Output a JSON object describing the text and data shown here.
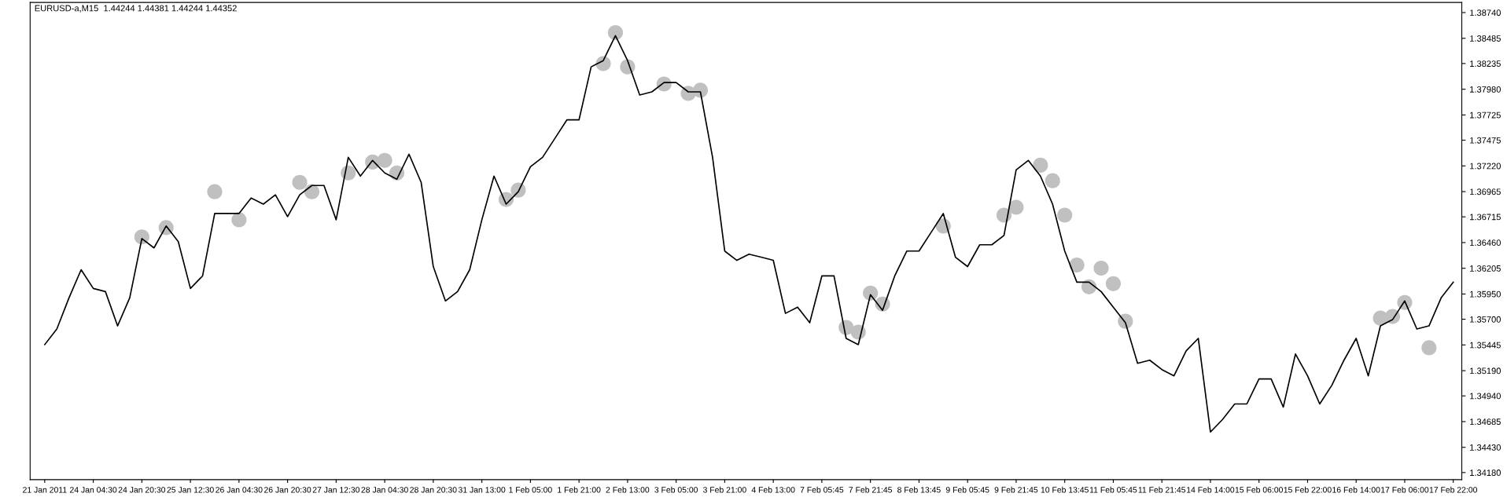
{
  "chart_data": {
    "type": "line",
    "title": "EURUSD-a,M15  1.44244 1.44381 1.44244 1.44352",
    "categories": [
      "21 Jan 2011",
      null,
      null,
      null,
      "24 Jan 04:30",
      null,
      null,
      null,
      "24 Jan 20:30",
      null,
      null,
      null,
      "25 Jan 12:30",
      null,
      null,
      null,
      "26 Jan 04:30",
      null,
      null,
      null,
      "26 Jan 20:30",
      null,
      null,
      null,
      "27 Jan 12:30",
      null,
      null,
      null,
      "28 Jan 04:30",
      null,
      null,
      null,
      "28 Jan 20:30",
      null,
      null,
      null,
      "31 Jan 13:00",
      null,
      null,
      null,
      "1 Feb 05:00",
      null,
      null,
      null,
      "1 Feb 21:00",
      null,
      null,
      null,
      "2 Feb 13:00",
      null,
      null,
      null,
      "3 Feb 05:00",
      null,
      null,
      null,
      "3 Feb 21:00",
      null,
      null,
      null,
      "4 Feb 13:00",
      null,
      null,
      null,
      "7 Feb 05:45",
      null,
      null,
      null,
      "7 Feb 21:45",
      null,
      null,
      null,
      "8 Feb 13:45",
      null,
      null,
      null,
      "9 Feb 05:45",
      null,
      null,
      null,
      "9 Feb 21:45",
      null,
      null,
      null,
      "10 Feb 13:45",
      null,
      null,
      null,
      "11 Feb 05:45",
      null,
      null,
      null,
      "11 Feb 21:45",
      null,
      null,
      null,
      "14 Feb 14:00",
      null,
      null,
      null,
      "15 Feb 06:00",
      null,
      null,
      null,
      "15 Feb 22:00",
      null,
      null,
      null,
      "16 Feb 14:00",
      null,
      null,
      null,
      "17 Feb 06:00",
      null,
      null,
      null,
      "17 Feb 22:00"
    ],
    "series": [
      {
        "type": "scatter",
        "color": "#c0c0c0",
        "marker": "circle",
        "values": [
          null,
          null,
          null,
          null,
          null,
          null,
          null,
          null,
          1.36516,
          null,
          1.36608,
          null,
          null,
          null,
          1.36964,
          null,
          1.36686,
          null,
          null,
          null,
          null,
          1.37057,
          1.36964,
          null,
          null,
          1.3715,
          null,
          1.37258,
          1.37274,
          1.3715,
          null,
          null,
          null,
          null,
          null,
          null,
          null,
          null,
          1.36887,
          1.3698,
          null,
          null,
          null,
          null,
          null,
          null,
          1.38234,
          1.38542,
          1.38202,
          null,
          null,
          1.38032,
          null,
          1.37939,
          1.3797,
          null,
          null,
          null,
          null,
          null,
          null,
          null,
          null,
          null,
          null,
          null,
          1.35618,
          1.35572,
          1.35959,
          1.3585,
          null,
          null,
          null,
          null,
          1.36624,
          null,
          null,
          null,
          null,
          1.36732,
          1.3681,
          null,
          1.37227,
          1.37073,
          1.36732,
          1.36237,
          1.36021,
          1.36206,
          1.36052,
          1.3568,
          null,
          null,
          null,
          null,
          null,
          null,
          null,
          null,
          null,
          null,
          null,
          null,
          null,
          null,
          null,
          null,
          null,
          null,
          null,
          null,
          1.35711,
          1.35727,
          1.35866,
          null,
          1.35417,
          null,
          null
        ]
      },
      {
        "color": "#000000",
        "values": [
          1.35448,
          1.35603,
          1.35912,
          1.36191,
          1.36005,
          1.35974,
          1.35634,
          1.35912,
          1.365,
          1.36407,
          1.36624,
          1.36469,
          1.36005,
          1.36129,
          1.36748,
          1.36748,
          1.36748,
          1.36902,
          1.36841,
          1.36933,
          1.36717,
          1.36933,
          1.37026,
          1.37026,
          1.36686,
          1.37305,
          1.37119,
          1.37274,
          1.3715,
          1.37088,
          1.37336,
          1.37057,
          1.36222,
          1.35881,
          1.35974,
          1.36191,
          1.36686,
          1.37119,
          1.36841,
          1.36964,
          1.37212,
          1.37305,
          1.3749,
          1.37676,
          1.37676,
          1.38202,
          1.38264,
          1.38511,
          1.38264,
          1.37923,
          1.37954,
          1.38047,
          1.38047,
          1.37954,
          1.37954,
          1.37305,
          1.36376,
          1.36284,
          1.36345,
          1.36315,
          1.36284,
          1.35758,
          1.3582,
          1.35665,
          1.36129,
          1.36129,
          1.3551,
          1.35448,
          1.35943,
          1.35789,
          1.36129,
          1.36376,
          1.36376,
          1.36562,
          1.36748,
          1.36315,
          1.36222,
          1.36438,
          1.36438,
          1.36531,
          1.37181,
          1.37274,
          1.37119,
          1.36841,
          1.36376,
          1.36067,
          1.36067,
          1.35974,
          1.3582,
          1.35665,
          1.35263,
          1.35294,
          1.35201,
          1.35139,
          1.35386,
          1.3551,
          1.34582,
          1.34706,
          1.3486,
          1.3486,
          1.35108,
          1.35108,
          1.34829,
          1.35355,
          1.35139,
          1.3486,
          1.35046,
          1.35294,
          1.3551,
          1.35139,
          1.35634,
          1.35696,
          1.35881,
          1.35603,
          1.35634,
          1.35912,
          1.36067
        ]
      }
    ],
    "ylim": [
      1.3411,
      1.3884
    ],
    "yticks": [
      {
        "value": 1.3874,
        "label": "1.38740"
      },
      {
        "value": 1.38485,
        "label": "1.38485"
      },
      {
        "value": 1.38235,
        "label": "1.38235"
      },
      {
        "value": 1.3798,
        "label": "1.37980"
      },
      {
        "value": 1.37725,
        "label": "1.37725"
      },
      {
        "value": 1.37475,
        "label": "1.37475"
      },
      {
        "value": 1.3722,
        "label": "1.37220"
      },
      {
        "value": 1.36965,
        "label": "1.36965"
      },
      {
        "value": 1.36715,
        "label": "1.36715"
      },
      {
        "value": 1.3646,
        "label": "1.36460"
      },
      {
        "value": 1.36205,
        "label": "1.36205"
      },
      {
        "value": 1.3595,
        "label": "1.35950"
      },
      {
        "value": 1.357,
        "label": "1.35700"
      },
      {
        "value": 1.35445,
        "label": "1.35445"
      },
      {
        "value": 1.3519,
        "label": "1.35190"
      },
      {
        "value": 1.3494,
        "label": "1.34940"
      },
      {
        "value": 1.34685,
        "label": "1.34685"
      },
      {
        "value": 1.3443,
        "label": "1.34430"
      },
      {
        "value": 1.3418,
        "label": "1.34180"
      }
    ],
    "grid": false,
    "legend": false
  }
}
